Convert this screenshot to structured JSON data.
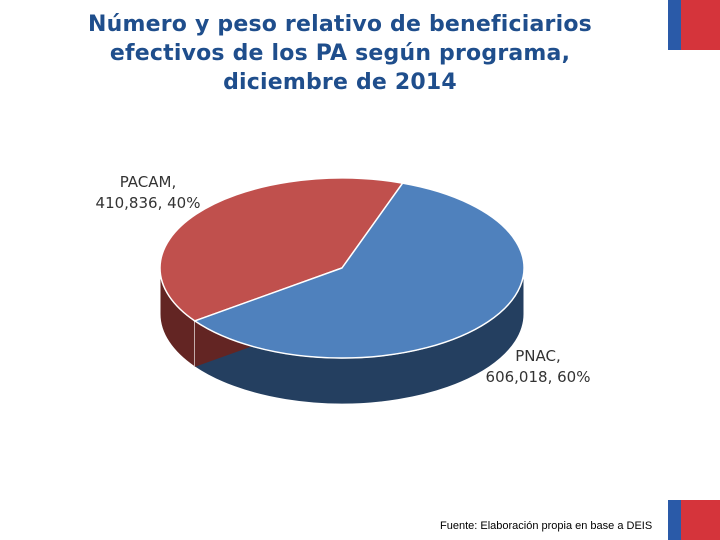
{
  "chart_data": {
    "type": "pie",
    "title_lines": [
      "Número y peso relativo de beneficiarios",
      "efectivos de los PA según programa,",
      "diciembre de 2014"
    ],
    "slices": [
      {
        "name": "PACAM",
        "value": 410836,
        "value_label": "410,836",
        "percent_label": "40%",
        "color": "#c0504d",
        "side_color": "#632523"
      },
      {
        "name": "PNAC",
        "value": 606018,
        "value_label": "606,018",
        "percent_label": "60%",
        "color": "#4f81bd",
        "side_color": "#243f60"
      }
    ],
    "style": "3d"
  },
  "source_note": "Fuente: Elaboración propia en base a DEIS",
  "colors": {
    "title": "#1f4e8c",
    "flag_blue": "#2a5aa8",
    "flag_red": "#d5343b"
  }
}
